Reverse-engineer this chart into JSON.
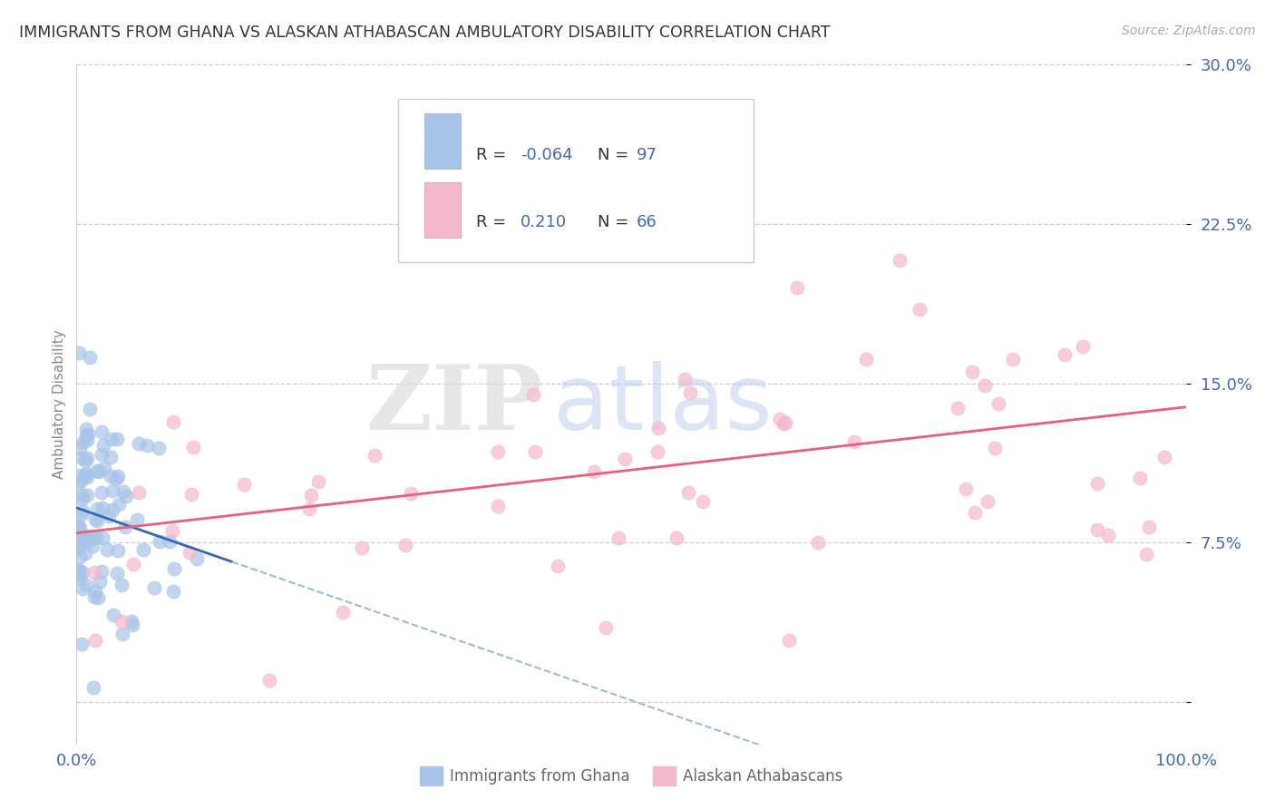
{
  "title": "IMMIGRANTS FROM GHANA VS ALASKAN ATHABASCAN AMBULATORY DISABILITY CORRELATION CHART",
  "source": "Source: ZipAtlas.com",
  "ylabel": "Ambulatory Disability",
  "legend_label1": "Immigrants from Ghana",
  "legend_label2": "Alaskan Athabascans",
  "r1": -0.064,
  "n1": 97,
  "r2": 0.21,
  "n2": 66,
  "color1": "#a8c4e8",
  "color2": "#f4b8cc",
  "line_color1_solid": "#3366bb",
  "line_color1_dash": "#99bbdd",
  "line_color2": "#e8607a",
  "bg_color": "#ffffff",
  "grid_color": "#ccccdd",
  "axis_label_color": "#4466bb",
  "title_color": "#333333",
  "xlim": [
    0.0,
    1.0
  ],
  "ylim": [
    -0.02,
    0.3
  ],
  "yticks": [
    0.0,
    0.075,
    0.15,
    0.225,
    0.3
  ],
  "ytick_labels": [
    "",
    "7.5%",
    "15.0%",
    "22.5%",
    "30.0%"
  ],
  "xticks": [
    0.0,
    0.25,
    0.5,
    0.75,
    1.0
  ],
  "xtick_labels": [
    "0.0%",
    "",
    "",
    "",
    "100.0%"
  ],
  "watermark_zip": "ZIP",
  "watermark_atlas": "atlas",
  "seed1": 42,
  "seed2": 99
}
